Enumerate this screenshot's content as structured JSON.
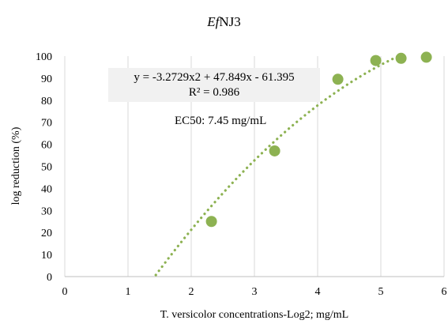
{
  "chart_data": {
    "type": "scatter",
    "title_italic": "Ef",
    "title_rest": "NJ3",
    "xlabel": "T. versicolor concentrations-Log2; mg/mL",
    "ylabel": "log reduction (%)",
    "xlim": [
      0,
      6
    ],
    "ylim": [
      0,
      100
    ],
    "x_ticks": [
      "0",
      "1",
      "2",
      "3",
      "4",
      "5",
      "6"
    ],
    "y_ticks": [
      "0",
      "10",
      "20",
      "30",
      "40",
      "50",
      "60",
      "70",
      "80",
      "90",
      "100"
    ],
    "grid": "vertical",
    "point_color": "#8db252",
    "points": [
      {
        "x": 2.32,
        "y": 25
      },
      {
        "x": 3.32,
        "y": 57
      },
      {
        "x": 4.32,
        "y": 89.5
      },
      {
        "x": 4.92,
        "y": 98
      },
      {
        "x": 5.32,
        "y": 99
      },
      {
        "x": 5.72,
        "y": 99.5
      }
    ],
    "trendline": {
      "type": "polynomial",
      "a": -3.2729,
      "b": 47.849,
      "c": -61.395,
      "style": "dotted"
    },
    "equation": "y = -3.2729x2 + 47.849x - 61.395",
    "r_squared": "R² = 0.986",
    "annotation": "EC50: 7.45 mg/mL"
  }
}
